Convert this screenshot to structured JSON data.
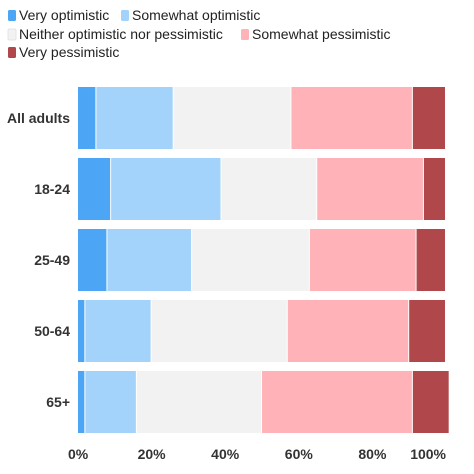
{
  "chart_data": {
    "type": "bar",
    "orientation": "horizontal",
    "stacked": true,
    "categories": [
      "All adults",
      "18-24",
      "25-49",
      "50-64",
      "65+"
    ],
    "series": [
      {
        "name": "Very optimistic",
        "color": "#4da6f5",
        "values": [
          5,
          9,
          8,
          2,
          2
        ]
      },
      {
        "name": "Somewhat optimistic",
        "color": "#a3d3fb",
        "values": [
          21,
          30,
          23,
          18,
          14
        ]
      },
      {
        "name": "Neither optimistic nor pessimistic",
        "color": "#f2f2f2",
        "values": [
          32,
          26,
          32,
          37,
          34
        ]
      },
      {
        "name": "Somewhat pessimistic",
        "color": "#ffb3b8",
        "values": [
          33,
          29,
          29,
          33,
          41
        ]
      },
      {
        "name": "Very pessimistic",
        "color": "#b0474a",
        "values": [
          9,
          6,
          8,
          10,
          10
        ]
      }
    ],
    "x_ticks": [
      "0%",
      "20%",
      "40%",
      "60%",
      "80%",
      "100%"
    ],
    "xlim": [
      0,
      100
    ],
    "grid": false,
    "legend_position": "top"
  }
}
